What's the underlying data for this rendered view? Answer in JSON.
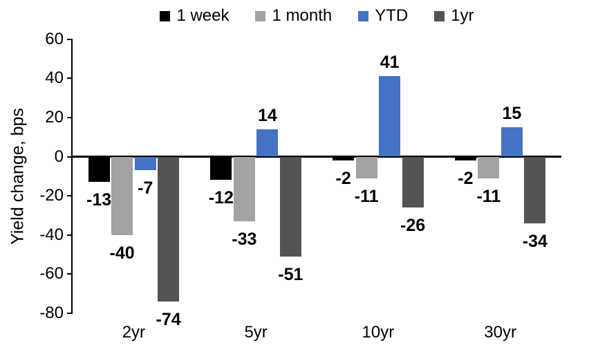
{
  "chart_data": {
    "type": "bar",
    "title": "",
    "xlabel": "",
    "ylabel": "Yield change, bps",
    "categories": [
      "2yr",
      "5yr",
      "10yr",
      "30yr"
    ],
    "series": [
      {
        "name": "1 week",
        "color": "#000000",
        "values": [
          -13,
          -12,
          -2,
          -2
        ]
      },
      {
        "name": "1 month",
        "color": "#A3A3A3",
        "values": [
          -40,
          -33,
          -11,
          -11
        ]
      },
      {
        "name": "YTD",
        "color": "#4472C4",
        "values": [
          -7,
          14,
          41,
          15
        ]
      },
      {
        "name": "1yr",
        "color": "#545454",
        "values": [
          -74,
          -51,
          -26,
          -34
        ]
      }
    ],
    "ylim": [
      -80,
      60
    ],
    "ytick_step": 20,
    "ytick_labels": [
      "60",
      "40",
      "20",
      "0",
      "-20",
      "-40",
      "-60",
      "-80"
    ],
    "legend_position": "top",
    "grid": false,
    "data_labels": true,
    "axis_color": "#000000"
  }
}
